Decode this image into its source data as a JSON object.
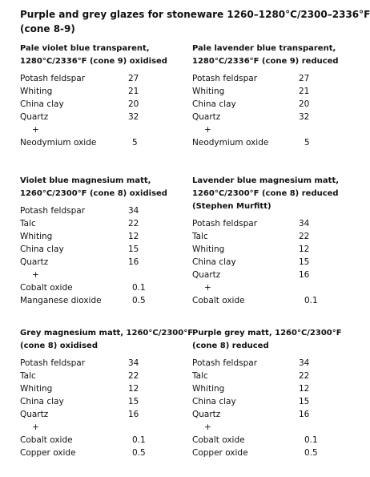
{
  "header": {
    "title_lines": [
      "Purple and grey glazes for stoneware 1260–1280°C/2300–2336°F",
      "(cone 8-9)"
    ]
  },
  "recipes": [
    {
      "title_lines": [
        "Pale violet blue transparent,",
        "1280°C/2336°F (cone 9) oxidised"
      ],
      "base": [
        [
          "Potash feldspar",
          27
        ],
        [
          "Whiting",
          21
        ],
        [
          "China clay",
          20
        ],
        [
          "Quartz",
          32
        ]
      ],
      "separator": "+",
      "additions": [
        [
          "Neodymium oxide",
          5
        ]
      ]
    },
    {
      "title_lines": [
        "Pale lavender blue transparent,",
        "1280°C/2336°F (cone 9) reduced"
      ],
      "base": [
        [
          "Potash feldspar",
          27
        ],
        [
          "Whiting",
          21
        ],
        [
          "China clay",
          20
        ],
        [
          "Quartz",
          32
        ]
      ],
      "separator": "+",
      "additions": [
        [
          "Neodymium oxide",
          5
        ]
      ]
    },
    {
      "title_lines": [
        "Violet blue magnesium matt,",
        "1260°C/2300°F (cone 8) oxidised"
      ],
      "base": [
        [
          "Potash feldspar",
          34
        ],
        [
          "Talc",
          22
        ],
        [
          "Whiting",
          12
        ],
        [
          "China clay",
          15
        ],
        [
          "Quartz",
          16
        ]
      ],
      "separator": "+",
      "additions": [
        [
          "Cobalt oxide",
          0.1
        ],
        [
          "Manganese dioxide",
          0.5
        ]
      ]
    },
    {
      "title_lines": [
        "Lavender blue magnesium matt,",
        "1260°C/2300°F (cone 8) reduced",
        "(Stephen Murfitt)"
      ],
      "base": [
        [
          "Potash feldspar",
          34
        ],
        [
          "Talc",
          22
        ],
        [
          "Whiting",
          12
        ],
        [
          "China clay",
          15
        ],
        [
          "Quartz",
          16
        ]
      ],
      "separator": "+",
      "additions": [
        [
          "Cobalt oxide",
          0.1
        ]
      ]
    },
    {
      "title_lines": [
        "Grey magnesium matt, 1260°C/2300°F",
        "(cone 8) oxidised"
      ],
      "base": [
        [
          "Potash feldspar",
          34
        ],
        [
          "Talc",
          22
        ],
        [
          "Whiting",
          12
        ],
        [
          "China clay",
          15
        ],
        [
          "Quartz",
          16
        ]
      ],
      "separator": "+",
      "additions": [
        [
          "Cobalt oxide",
          0.1
        ],
        [
          "Copper oxide",
          0.5
        ]
      ]
    },
    {
      "title_lines": [
        "Purple grey matt, 1260°C/2300°F",
        "(cone 8) reduced"
      ],
      "base": [
        [
          "Potash feldspar",
          34
        ],
        [
          "Talc",
          22
        ],
        [
          "Whiting",
          12
        ],
        [
          "China clay",
          15
        ],
        [
          "Quartz",
          16
        ]
      ],
      "separator": "+",
      "additions": [
        [
          "Cobalt oxide",
          0.1
        ],
        [
          "Copper oxide",
          0.5
        ]
      ]
    }
  ]
}
